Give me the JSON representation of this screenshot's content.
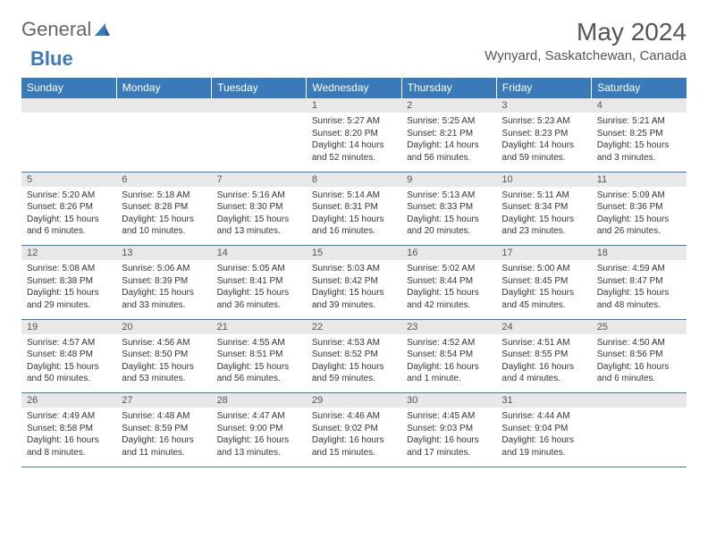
{
  "brand": {
    "part1": "General",
    "part2": "Blue"
  },
  "title": "May 2024",
  "location": "Wynyard, Saskatchewan, Canada",
  "colors": {
    "header_bg": "#3a7ab8",
    "header_text": "#ffffff",
    "daynum_bg": "#e8e8e8",
    "border": "#3a7ab8",
    "text": "#333333"
  },
  "day_headers": [
    "Sunday",
    "Monday",
    "Tuesday",
    "Wednesday",
    "Thursday",
    "Friday",
    "Saturday"
  ],
  "weeks": [
    [
      {
        "n": "",
        "sr": "",
        "ss": "",
        "dl": ""
      },
      {
        "n": "",
        "sr": "",
        "ss": "",
        "dl": ""
      },
      {
        "n": "",
        "sr": "",
        "ss": "",
        "dl": ""
      },
      {
        "n": "1",
        "sr": "Sunrise: 5:27 AM",
        "ss": "Sunset: 8:20 PM",
        "dl": "Daylight: 14 hours and 52 minutes."
      },
      {
        "n": "2",
        "sr": "Sunrise: 5:25 AM",
        "ss": "Sunset: 8:21 PM",
        "dl": "Daylight: 14 hours and 56 minutes."
      },
      {
        "n": "3",
        "sr": "Sunrise: 5:23 AM",
        "ss": "Sunset: 8:23 PM",
        "dl": "Daylight: 14 hours and 59 minutes."
      },
      {
        "n": "4",
        "sr": "Sunrise: 5:21 AM",
        "ss": "Sunset: 8:25 PM",
        "dl": "Daylight: 15 hours and 3 minutes."
      }
    ],
    [
      {
        "n": "5",
        "sr": "Sunrise: 5:20 AM",
        "ss": "Sunset: 8:26 PM",
        "dl": "Daylight: 15 hours and 6 minutes."
      },
      {
        "n": "6",
        "sr": "Sunrise: 5:18 AM",
        "ss": "Sunset: 8:28 PM",
        "dl": "Daylight: 15 hours and 10 minutes."
      },
      {
        "n": "7",
        "sr": "Sunrise: 5:16 AM",
        "ss": "Sunset: 8:30 PM",
        "dl": "Daylight: 15 hours and 13 minutes."
      },
      {
        "n": "8",
        "sr": "Sunrise: 5:14 AM",
        "ss": "Sunset: 8:31 PM",
        "dl": "Daylight: 15 hours and 16 minutes."
      },
      {
        "n": "9",
        "sr": "Sunrise: 5:13 AM",
        "ss": "Sunset: 8:33 PM",
        "dl": "Daylight: 15 hours and 20 minutes."
      },
      {
        "n": "10",
        "sr": "Sunrise: 5:11 AM",
        "ss": "Sunset: 8:34 PM",
        "dl": "Daylight: 15 hours and 23 minutes."
      },
      {
        "n": "11",
        "sr": "Sunrise: 5:09 AM",
        "ss": "Sunset: 8:36 PM",
        "dl": "Daylight: 15 hours and 26 minutes."
      }
    ],
    [
      {
        "n": "12",
        "sr": "Sunrise: 5:08 AM",
        "ss": "Sunset: 8:38 PM",
        "dl": "Daylight: 15 hours and 29 minutes."
      },
      {
        "n": "13",
        "sr": "Sunrise: 5:06 AM",
        "ss": "Sunset: 8:39 PM",
        "dl": "Daylight: 15 hours and 33 minutes."
      },
      {
        "n": "14",
        "sr": "Sunrise: 5:05 AM",
        "ss": "Sunset: 8:41 PM",
        "dl": "Daylight: 15 hours and 36 minutes."
      },
      {
        "n": "15",
        "sr": "Sunrise: 5:03 AM",
        "ss": "Sunset: 8:42 PM",
        "dl": "Daylight: 15 hours and 39 minutes."
      },
      {
        "n": "16",
        "sr": "Sunrise: 5:02 AM",
        "ss": "Sunset: 8:44 PM",
        "dl": "Daylight: 15 hours and 42 minutes."
      },
      {
        "n": "17",
        "sr": "Sunrise: 5:00 AM",
        "ss": "Sunset: 8:45 PM",
        "dl": "Daylight: 15 hours and 45 minutes."
      },
      {
        "n": "18",
        "sr": "Sunrise: 4:59 AM",
        "ss": "Sunset: 8:47 PM",
        "dl": "Daylight: 15 hours and 48 minutes."
      }
    ],
    [
      {
        "n": "19",
        "sr": "Sunrise: 4:57 AM",
        "ss": "Sunset: 8:48 PM",
        "dl": "Daylight: 15 hours and 50 minutes."
      },
      {
        "n": "20",
        "sr": "Sunrise: 4:56 AM",
        "ss": "Sunset: 8:50 PM",
        "dl": "Daylight: 15 hours and 53 minutes."
      },
      {
        "n": "21",
        "sr": "Sunrise: 4:55 AM",
        "ss": "Sunset: 8:51 PM",
        "dl": "Daylight: 15 hours and 56 minutes."
      },
      {
        "n": "22",
        "sr": "Sunrise: 4:53 AM",
        "ss": "Sunset: 8:52 PM",
        "dl": "Daylight: 15 hours and 59 minutes."
      },
      {
        "n": "23",
        "sr": "Sunrise: 4:52 AM",
        "ss": "Sunset: 8:54 PM",
        "dl": "Daylight: 16 hours and 1 minute."
      },
      {
        "n": "24",
        "sr": "Sunrise: 4:51 AM",
        "ss": "Sunset: 8:55 PM",
        "dl": "Daylight: 16 hours and 4 minutes."
      },
      {
        "n": "25",
        "sr": "Sunrise: 4:50 AM",
        "ss": "Sunset: 8:56 PM",
        "dl": "Daylight: 16 hours and 6 minutes."
      }
    ],
    [
      {
        "n": "26",
        "sr": "Sunrise: 4:49 AM",
        "ss": "Sunset: 8:58 PM",
        "dl": "Daylight: 16 hours and 8 minutes."
      },
      {
        "n": "27",
        "sr": "Sunrise: 4:48 AM",
        "ss": "Sunset: 8:59 PM",
        "dl": "Daylight: 16 hours and 11 minutes."
      },
      {
        "n": "28",
        "sr": "Sunrise: 4:47 AM",
        "ss": "Sunset: 9:00 PM",
        "dl": "Daylight: 16 hours and 13 minutes."
      },
      {
        "n": "29",
        "sr": "Sunrise: 4:46 AM",
        "ss": "Sunset: 9:02 PM",
        "dl": "Daylight: 16 hours and 15 minutes."
      },
      {
        "n": "30",
        "sr": "Sunrise: 4:45 AM",
        "ss": "Sunset: 9:03 PM",
        "dl": "Daylight: 16 hours and 17 minutes."
      },
      {
        "n": "31",
        "sr": "Sunrise: 4:44 AM",
        "ss": "Sunset: 9:04 PM",
        "dl": "Daylight: 16 hours and 19 minutes."
      },
      {
        "n": "",
        "sr": "",
        "ss": "",
        "dl": ""
      }
    ]
  ]
}
